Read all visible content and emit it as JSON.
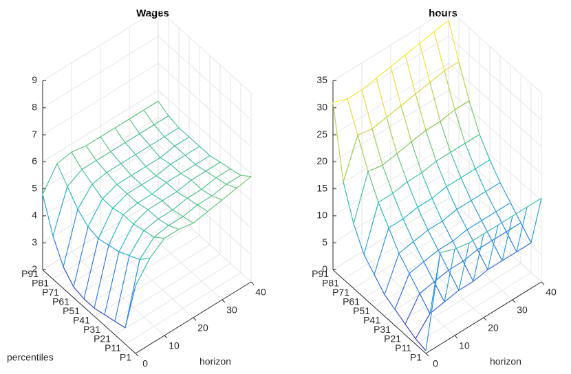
{
  "chart_data": [
    {
      "type": "surface",
      "title": "Wages",
      "xlabel": "horizon",
      "ylabel": "percentiles",
      "x": [
        0,
        5,
        10,
        15,
        20,
        25,
        30,
        35,
        40
      ],
      "xlim": [
        0,
        40
      ],
      "xticks": [
        0,
        10,
        20,
        30,
        40
      ],
      "zlim": [
        2,
        9
      ],
      "zticks": [
        2,
        3,
        4,
        5,
        6,
        7,
        8,
        9
      ],
      "grid": true,
      "colormap": [
        "#3e26a8",
        "#2f7fef",
        "#1fbcc0",
        "#8fcb4f",
        "#f4d83a",
        "#f9fb15"
      ],
      "series": [
        {
          "name": "P1",
          "values": [
            4.5,
            5.2,
            5.6,
            5.6,
            5.5,
            5.6,
            5.7,
            5.8,
            5.9
          ]
        },
        {
          "name": "P11",
          "values": [
            2.6,
            4.8,
            5.3,
            5.4,
            5.4,
            5.5,
            5.5,
            5.6,
            5.6
          ]
        },
        {
          "name": "P21",
          "values": [
            2.5,
            4.6,
            5.2,
            5.3,
            5.3,
            5.4,
            5.4,
            5.5,
            5.5
          ]
        },
        {
          "name": "P31",
          "values": [
            2.4,
            4.4,
            5.1,
            5.3,
            5.3,
            5.3,
            5.4,
            5.4,
            5.4
          ]
        },
        {
          "name": "P41",
          "values": [
            2.3,
            4.3,
            5.1,
            5.2,
            5.2,
            5.3,
            5.3,
            5.3,
            5.3
          ]
        },
        {
          "name": "P51",
          "values": [
            2.3,
            4.2,
            5.0,
            5.2,
            5.2,
            5.2,
            5.3,
            5.3,
            5.3
          ]
        },
        {
          "name": "P61",
          "values": [
            2.4,
            4.3,
            5.0,
            5.2,
            5.2,
            5.2,
            5.2,
            5.3,
            5.3
          ]
        },
        {
          "name": "P71",
          "values": [
            2.8,
            4.6,
            5.2,
            5.3,
            5.3,
            5.3,
            5.3,
            5.3,
            5.3
          ]
        },
        {
          "name": "P81",
          "values": [
            3.6,
            5.1,
            5.4,
            5.4,
            5.4,
            5.4,
            5.4,
            5.4,
            5.4
          ]
        },
        {
          "name": "P91",
          "values": [
            4.8,
            5.6,
            5.7,
            5.6,
            5.6,
            5.6,
            5.6,
            5.6,
            5.6
          ]
        }
      ]
    },
    {
      "type": "surface",
      "title": "hours",
      "xlabel": "horizon",
      "x": [
        0,
        5,
        10,
        15,
        20,
        25,
        30,
        35,
        40
      ],
      "xlim": [
        0,
        40
      ],
      "xticks": [
        0,
        10,
        20,
        30,
        40
      ],
      "zlim": [
        0,
        35
      ],
      "zticks": [
        0,
        5,
        10,
        15,
        20,
        25,
        30,
        35
      ],
      "grid": true,
      "colormap": [
        "#3e26a8",
        "#2f7fef",
        "#1fbcc0",
        "#8fcb4f",
        "#f4d83a",
        "#f9fb15"
      ],
      "series": [
        {
          "name": "P1",
          "values": [
            0.5,
            17,
            16,
            15.5,
            15.5,
            15.5,
            15.5,
            15.5,
            15.5
          ]
        },
        {
          "name": "P11",
          "values": [
            1,
            4,
            4.5,
            5,
            5,
            5.5,
            5.5,
            5.5,
            5.5
          ]
        },
        {
          "name": "P21",
          "values": [
            2,
            6,
            6.5,
            7,
            7,
            7.5,
            7.5,
            7.5,
            7.5
          ]
        },
        {
          "name": "P31",
          "values": [
            3,
            8,
            8.5,
            9,
            9,
            9.5,
            9.5,
            9.5,
            9.5
          ]
        },
        {
          "name": "P41",
          "values": [
            4,
            10,
            10.5,
            11,
            11,
            11.5,
            11.5,
            11.5,
            11.5
          ]
        },
        {
          "name": "P51",
          "values": [
            6,
            13,
            13,
            13.5,
            13.5,
            14,
            14,
            14,
            14
          ]
        },
        {
          "name": "P61",
          "values": [
            8,
            16,
            16,
            16.5,
            16.5,
            17,
            17,
            17,
            17
          ]
        },
        {
          "name": "P71",
          "values": [
            12,
            20,
            19.5,
            20,
            20.5,
            21,
            21,
            21.5,
            21.5
          ]
        },
        {
          "name": "P81",
          "values": [
            18,
            25,
            24.5,
            25,
            25.5,
            26,
            26.5,
            27,
            27
          ]
        },
        {
          "name": "P91",
          "values": [
            31,
            30,
            30,
            30.5,
            31,
            31.5,
            32,
            32.5,
            33
          ]
        }
      ]
    }
  ]
}
